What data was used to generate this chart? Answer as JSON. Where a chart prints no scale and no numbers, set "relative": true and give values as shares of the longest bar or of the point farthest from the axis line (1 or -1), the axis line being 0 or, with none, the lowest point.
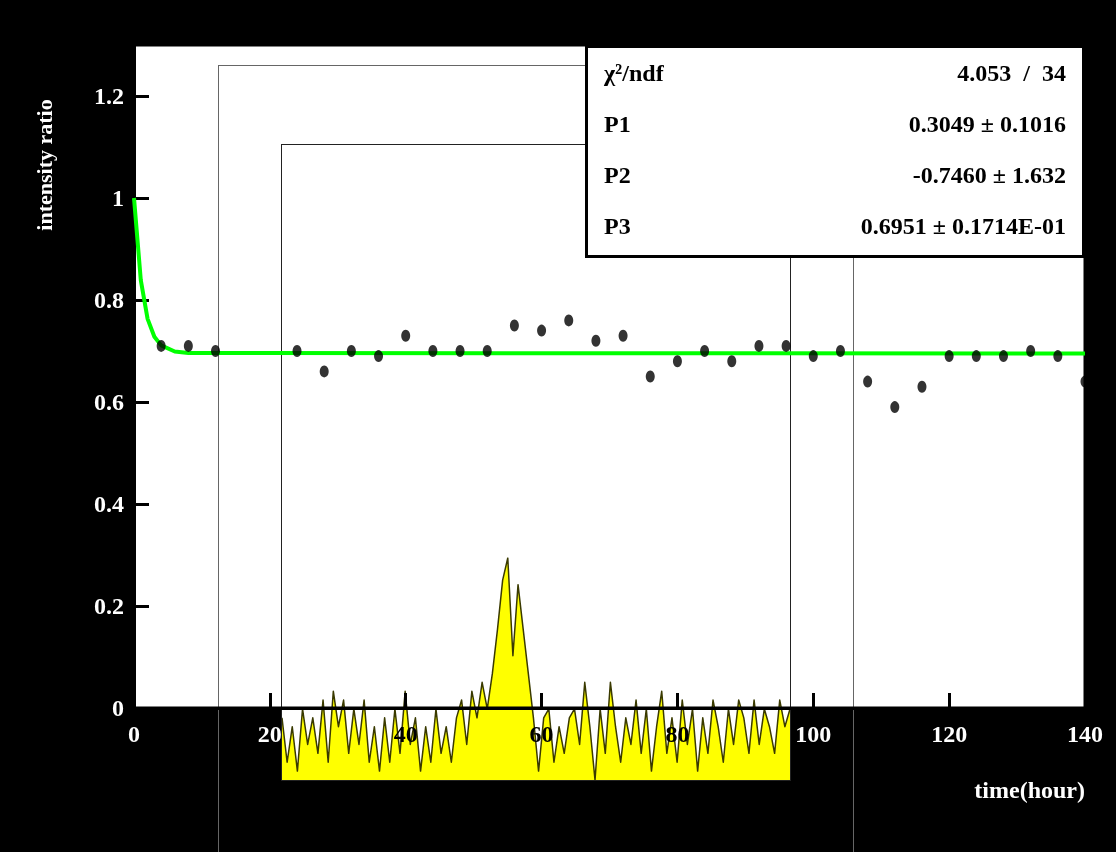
{
  "chart_data": [
    {
      "type": "scatter",
      "xlabel": "time(hour)",
      "ylabel": "intensity ratio",
      "xlim": [
        0,
        140
      ],
      "xticks": [
        0,
        20,
        40,
        60,
        80,
        100,
        120,
        140
      ],
      "ylim": [
        0,
        1.3
      ],
      "yticks": [
        0,
        0.2,
        0.4,
        0.6,
        0.8,
        1,
        1.2
      ],
      "marker": "circle",
      "grid": false,
      "annotations": [
        "χ²/ndf 4.053  /  34",
        "P1 0.3049 ± 0.1016",
        "P2 -0.7460 ± 1.632",
        "P3 0.6951 ± 0.1714E-01"
      ],
      "series": [
        {
          "type": "scatter",
          "color": "#000000",
          "x": [
            4,
            8,
            12,
            24,
            28,
            32,
            36,
            40,
            44,
            48,
            52,
            56,
            60,
            64,
            68,
            72,
            76,
            80,
            84,
            88,
            92,
            96,
            100,
            104,
            108,
            112,
            116,
            120,
            124,
            128,
            132,
            136,
            140
          ],
          "values": [
            0.71,
            0.71,
            0.7,
            0.7,
            0.66,
            0.7,
            0.69,
            0.73,
            0.7,
            0.7,
            0.7,
            0.75,
            0.74,
            0.76,
            0.72,
            0.73,
            0.65,
            0.68,
            0.7,
            0.68,
            0.71,
            0.71,
            0.69,
            0.7,
            0.64,
            0.59,
            0.63,
            0.69,
            0.69,
            0.69,
            0.7,
            0.69,
            0.64
          ]
        },
        {
          "type": "line",
          "color": "#00ff00",
          "marker": "none",
          "x": [
            0,
            1,
            2,
            3,
            4,
            6,
            8,
            140
          ],
          "values": [
            1.0,
            0.839,
            0.763,
            0.728,
            0.711,
            0.699,
            0.696,
            0.695
          ]
        }
      ]
    },
    {
      "type": "area",
      "relative": true,
      "grid": false,
      "categories": [
        null,
        null,
        null,
        null,
        null,
        null,
        null,
        null,
        null,
        null,
        null,
        null,
        null,
        null,
        null,
        null,
        null,
        null,
        null,
        null,
        null,
        null,
        null,
        null,
        null,
        null,
        null,
        null,
        null,
        null,
        null,
        null,
        null,
        null,
        null,
        null,
        null,
        null,
        null,
        null,
        null,
        null,
        null,
        null,
        null,
        null,
        null,
        null,
        null,
        null,
        null,
        null,
        null,
        null,
        null,
        null,
        null,
        null,
        null,
        null,
        null,
        null,
        null,
        null,
        null,
        null,
        null,
        null,
        null,
        null,
        null,
        null,
        null,
        null,
        null,
        null,
        null,
        null,
        null,
        null,
        null,
        null,
        null,
        null,
        null,
        null,
        null,
        null,
        null,
        null,
        null,
        null,
        null,
        null,
        null,
        null,
        null,
        null,
        null,
        null
      ],
      "series": [
        {
          "color": "#ffff00",
          "values": [
            0.28,
            0.08,
            0.24,
            0.04,
            0.32,
            0.16,
            0.28,
            0.12,
            0.36,
            0.08,
            0.4,
            0.24,
            0.36,
            0.12,
            0.32,
            0.16,
            0.36,
            0.08,
            0.24,
            0.04,
            0.28,
            0.08,
            0.32,
            0.12,
            0.4,
            0.16,
            0.28,
            0.04,
            0.24,
            0.08,
            0.32,
            0.12,
            0.24,
            0.08,
            0.28,
            0.36,
            0.16,
            0.4,
            0.28,
            0.44,
            0.32,
            0.48,
            0.68,
            0.9,
            1,
            0.56,
            0.88,
            0.68,
            0.48,
            0.28,
            0.04,
            0.28,
            0.32,
            0.08,
            0.24,
            0.12,
            0.28,
            0.32,
            0.16,
            0.44,
            0.24,
            0,
            0.32,
            0.12,
            0.44,
            0.24,
            0.08,
            0.28,
            0.16,
            0.36,
            0.12,
            0.32,
            0.04,
            0.24,
            0.4,
            0.12,
            0.28,
            0.08,
            0.36,
            0.16,
            0.32,
            0.04,
            0.28,
            0.12,
            0.36,
            0.24,
            0.08,
            0.32,
            0.16,
            0.36,
            0.28,
            0.12,
            0.36,
            0.16,
            0.32,
            0.24,
            0.12,
            0.36,
            0.24,
            0.32
          ]
        }
      ]
    }
  ]
}
